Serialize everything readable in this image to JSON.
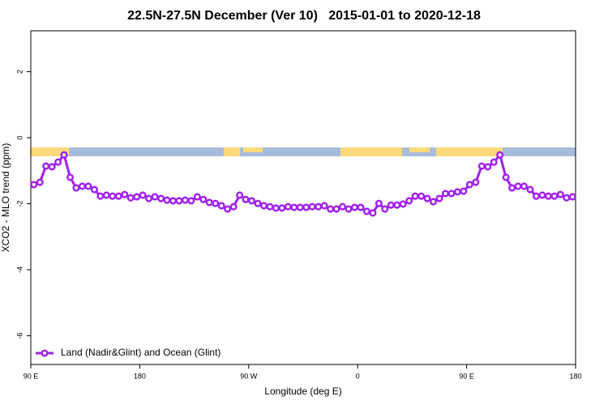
{
  "chart_data": {
    "type": "line",
    "title": "22.5N-27.5N December (Ver 10)   2015-01-01 to 2020-12-18",
    "xlabel": "Longitude (deg E)",
    "ylabel": "XCO2 - MLO trend (ppm)",
    "xlim": [
      90,
      540
    ],
    "ylim": [
      -6.87,
      3.24
    ],
    "xticks": [
      {
        "value": 90,
        "label": "90 E"
      },
      180,
      {
        "value": 270,
        "label": "90 W"
      },
      {
        "value": 360,
        "label": "0"
      },
      {
        "value": 450,
        "label": "90 E"
      },
      {
        "value": 540,
        "label": "180"
      }
    ],
    "yticks": [
      2,
      0,
      -2,
      -4,
      -6
    ],
    "legend": "bottom-left",
    "series": [
      {
        "name": "Land (Nadir&Glint) and Ocean (Glint)",
        "color": "#a020f0",
        "x": [
          92.5,
          97.5,
          102.5,
          107.5,
          112.5,
          117.5,
          122.5,
          127.5,
          132.5,
          137.5,
          142.5,
          147.5,
          152.5,
          157.5,
          162.5,
          167.5,
          172.5,
          177.5,
          182.5,
          187.5,
          192.5,
          197.5,
          202.5,
          207.5,
          212.5,
          217.5,
          222.5,
          227.5,
          232.5,
          237.5,
          242.5,
          247.5,
          252.5,
          257.5,
          262.5,
          267.5,
          272.5,
          277.5,
          282.5,
          287.5,
          292.5,
          297.5,
          302.5,
          307.5,
          312.5,
          317.5,
          322.5,
          327.5,
          332.5,
          337.5,
          342.5,
          347.5,
          352.5,
          357.5,
          362.5,
          367.5,
          372.5,
          377.5,
          382.5,
          387.5,
          392.5,
          397.5,
          402.5,
          407.5,
          412.5,
          417.5,
          422.5,
          427.5,
          432.5,
          437.5,
          442.5,
          447.5,
          452.5,
          457.5,
          462.5,
          467.5,
          472.5,
          477.5,
          482.5,
          487.5,
          492.5,
          497.5,
          502.5,
          507.5,
          512.5,
          517.5,
          522.5,
          527.5,
          532.5,
          537.5
        ],
        "values": [
          -1.42,
          -1.35,
          -0.86,
          -0.88,
          -0.74,
          -0.52,
          -1.2,
          -1.52,
          -1.47,
          -1.47,
          -1.57,
          -1.77,
          -1.74,
          -1.77,
          -1.77,
          -1.72,
          -1.82,
          -1.79,
          -1.74,
          -1.84,
          -1.79,
          -1.84,
          -1.89,
          -1.91,
          -1.91,
          -1.89,
          -1.91,
          -1.79,
          -1.87,
          -1.96,
          -1.99,
          -2.06,
          -2.16,
          -2.09,
          -1.74,
          -1.87,
          -1.91,
          -1.99,
          -2.06,
          -2.09,
          -2.13,
          -2.13,
          -2.09,
          -2.11,
          -2.11,
          -2.11,
          -2.09,
          -2.09,
          -2.06,
          -2.16,
          -2.16,
          -2.09,
          -2.16,
          -2.11,
          -2.11,
          -2.23,
          -2.28,
          -1.99,
          -2.16,
          -2.04,
          -2.04,
          -2.01,
          -1.91,
          -1.77,
          -1.77,
          -1.84,
          -1.94,
          -1.84,
          -1.69,
          -1.69,
          -1.64,
          -1.62,
          -1.42,
          -1.35,
          -0.86,
          -0.88,
          -0.74,
          -0.52,
          -1.2,
          -1.52,
          -1.47,
          -1.47,
          -1.57,
          -1.77,
          -1.74,
          -1.77,
          -1.77,
          -1.72,
          -1.82,
          -1.79
        ]
      }
    ]
  }
}
